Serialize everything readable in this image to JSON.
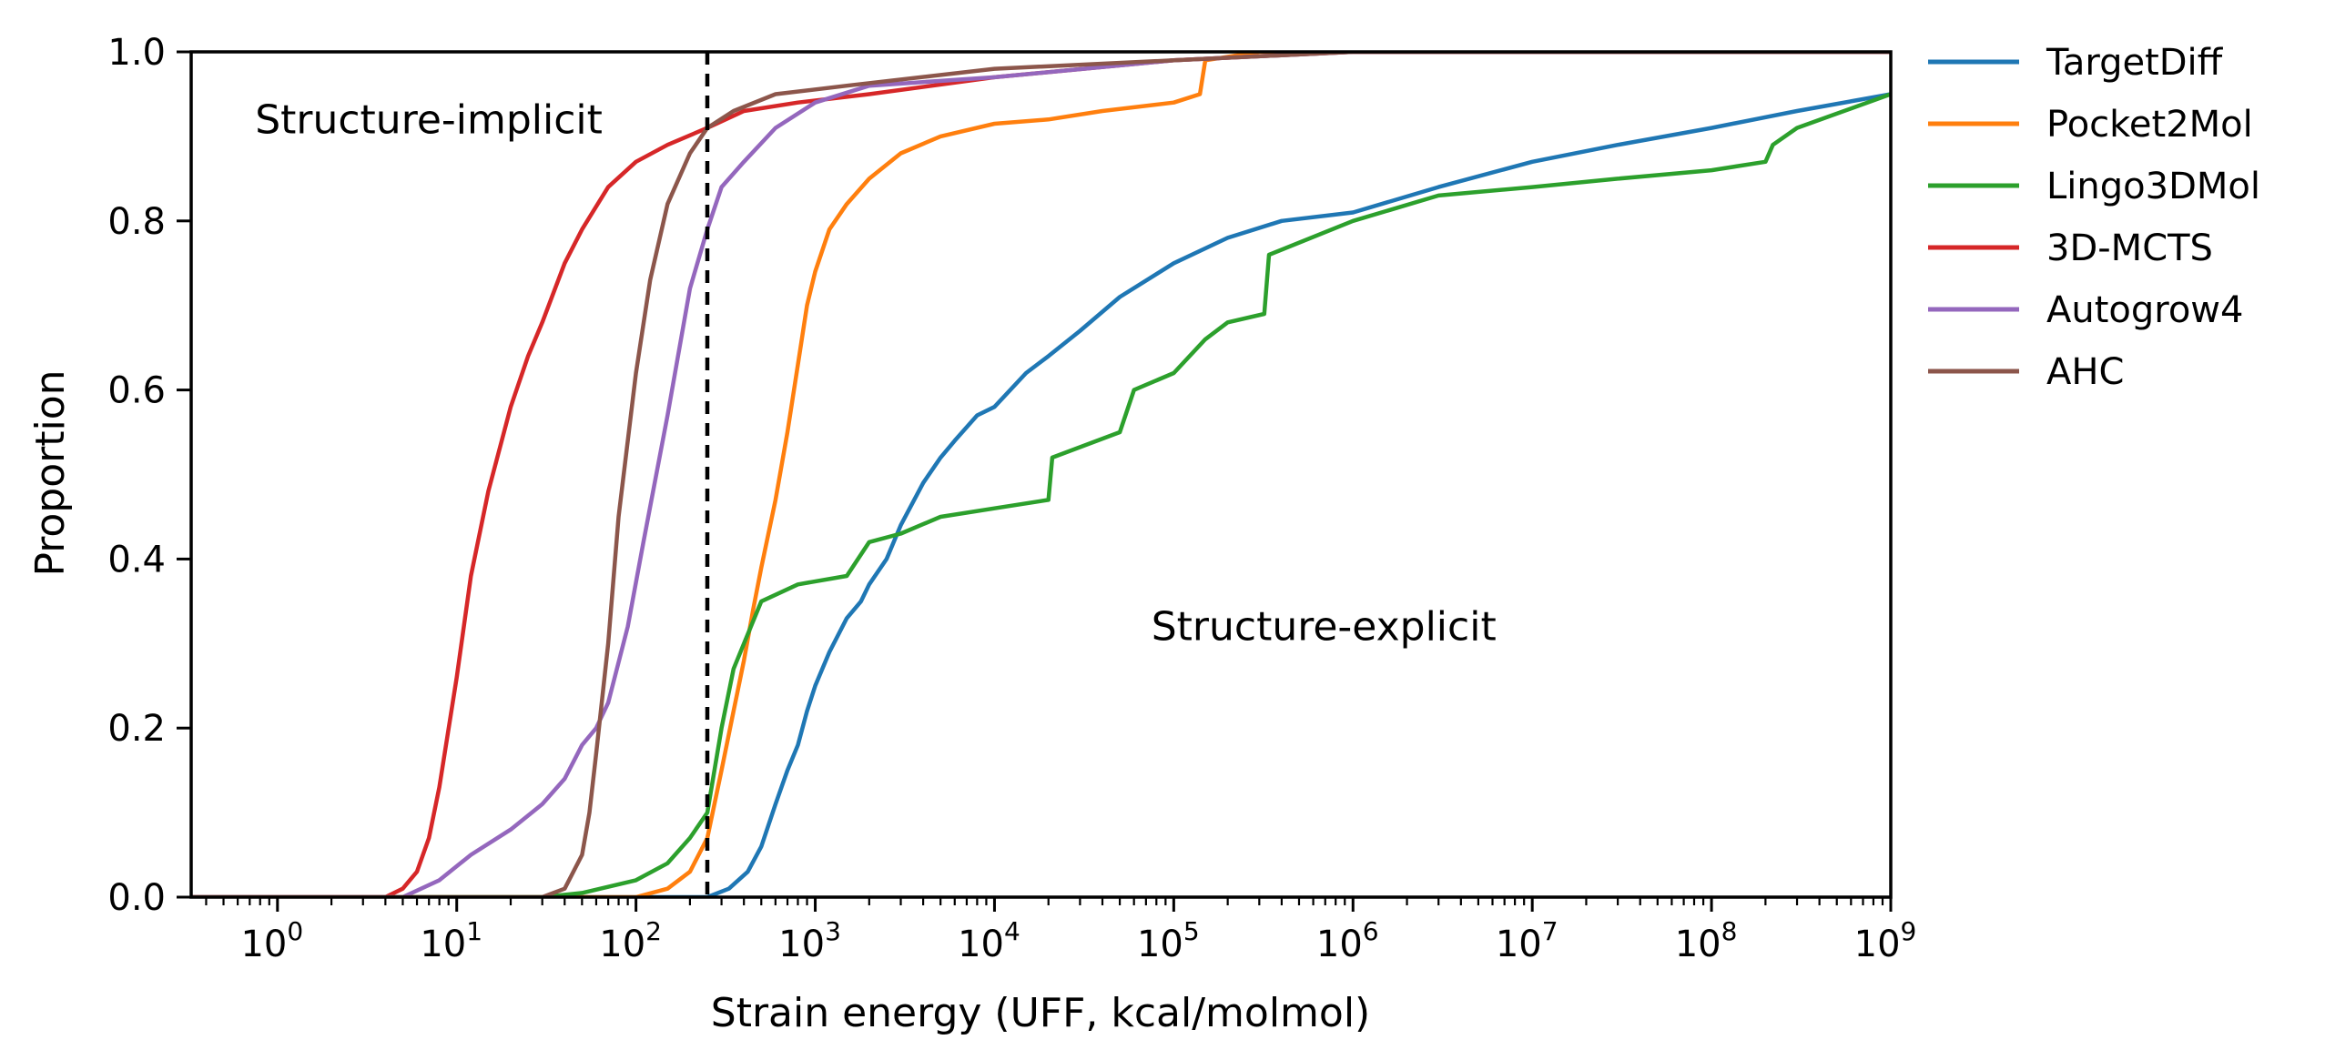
{
  "chart_data": {
    "type": "line",
    "xlabel": "Strain energy (UFF, kcal/molmol)",
    "ylabel": "Proportion",
    "x_scale": "log",
    "xlim": [
      0.33,
      1000000000
    ],
    "ylim": [
      0,
      1
    ],
    "x_ticks": [
      {
        "value": 1,
        "base": "10",
        "exp": "0"
      },
      {
        "value": 10,
        "base": "10",
        "exp": "1"
      },
      {
        "value": 100,
        "base": "10",
        "exp": "2"
      },
      {
        "value": 1000,
        "base": "10",
        "exp": "3"
      },
      {
        "value": 10000,
        "base": "10",
        "exp": "4"
      },
      {
        "value": 100000,
        "base": "10",
        "exp": "5"
      },
      {
        "value": 1000000,
        "base": "10",
        "exp": "6"
      },
      {
        "value": 10000000,
        "base": "10",
        "exp": "7"
      },
      {
        "value": 100000000,
        "base": "10",
        "exp": "8"
      },
      {
        "value": 1000000000,
        "base": "10",
        "exp": "9"
      }
    ],
    "y_ticks": [
      {
        "value": 0,
        "label": "0.0"
      },
      {
        "value": 0.2,
        "label": "0.2"
      },
      {
        "value": 0.4,
        "label": "0.4"
      },
      {
        "value": 0.6,
        "label": "0.6"
      },
      {
        "value": 0.8,
        "label": "0.8"
      },
      {
        "value": 1,
        "label": "1.0"
      }
    ],
    "grid": false,
    "legend_position": "outside-right-top",
    "threshold_line": {
      "x": 250,
      "style": "dashed",
      "color": "#000000"
    },
    "annotations": [
      {
        "text": "Structure-implicit",
        "x": 0.75,
        "y": 0.92
      },
      {
        "text": "Structure-explicit",
        "x": 75000,
        "y": 0.32
      }
    ],
    "series": [
      {
        "name": "TargetDiff",
        "color": "#1f77b4",
        "points": [
          [
            0.33,
            0
          ],
          [
            150,
            0
          ],
          [
            250,
            0
          ],
          [
            330,
            0.01
          ],
          [
            420,
            0.03
          ],
          [
            500,
            0.06
          ],
          [
            600,
            0.11
          ],
          [
            700,
            0.15
          ],
          [
            800,
            0.18
          ],
          [
            900,
            0.22
          ],
          [
            1000,
            0.25
          ],
          [
            1200,
            0.29
          ],
          [
            1500,
            0.33
          ],
          [
            1800,
            0.35
          ],
          [
            2000,
            0.37
          ],
          [
            2500,
            0.4
          ],
          [
            3000,
            0.44
          ],
          [
            4000,
            0.49
          ],
          [
            5000,
            0.52
          ],
          [
            6000,
            0.54
          ],
          [
            8000,
            0.57
          ],
          [
            10000,
            0.58
          ],
          [
            15000,
            0.62
          ],
          [
            20000,
            0.64
          ],
          [
            30000,
            0.67
          ],
          [
            50000,
            0.71
          ],
          [
            100000,
            0.75
          ],
          [
            200000,
            0.78
          ],
          [
            400000,
            0.8
          ],
          [
            1000000,
            0.81
          ],
          [
            3000000,
            0.84
          ],
          [
            10000000,
            0.87
          ],
          [
            30000000,
            0.89
          ],
          [
            100000000,
            0.91
          ],
          [
            300000000,
            0.93
          ],
          [
            1000000000,
            0.95
          ]
        ]
      },
      {
        "name": "Pocket2Mol",
        "color": "#ff7f0e",
        "points": [
          [
            0.33,
            0
          ],
          [
            30,
            0
          ],
          [
            100,
            0
          ],
          [
            150,
            0.01
          ],
          [
            200,
            0.03
          ],
          [
            250,
            0.07
          ],
          [
            300,
            0.15
          ],
          [
            350,
            0.22
          ],
          [
            400,
            0.28
          ],
          [
            450,
            0.34
          ],
          [
            500,
            0.39
          ],
          [
            600,
            0.47
          ],
          [
            700,
            0.55
          ],
          [
            800,
            0.63
          ],
          [
            900,
            0.7
          ],
          [
            1000,
            0.74
          ],
          [
            1200,
            0.79
          ],
          [
            1500,
            0.82
          ],
          [
            2000,
            0.85
          ],
          [
            3000,
            0.88
          ],
          [
            5000,
            0.9
          ],
          [
            10000,
            0.915
          ],
          [
            20000,
            0.92
          ],
          [
            40000,
            0.93
          ],
          [
            100000,
            0.94
          ],
          [
            140000,
            0.95
          ],
          [
            150000,
            0.99
          ],
          [
            300000,
            1.0
          ],
          [
            1000000000,
            1.0
          ]
        ]
      },
      {
        "name": "Lingo3DMol",
        "color": "#2ca02c",
        "points": [
          [
            0.33,
            0
          ],
          [
            30,
            0
          ],
          [
            50,
            0.005
          ],
          [
            100,
            0.02
          ],
          [
            150,
            0.04
          ],
          [
            200,
            0.07
          ],
          [
            250,
            0.1
          ],
          [
            300,
            0.2
          ],
          [
            350,
            0.27
          ],
          [
            400,
            0.3
          ],
          [
            500,
            0.35
          ],
          [
            800,
            0.37
          ],
          [
            1500,
            0.38
          ],
          [
            2000,
            0.42
          ],
          [
            3000,
            0.43
          ],
          [
            5000,
            0.45
          ],
          [
            10000,
            0.46
          ],
          [
            20000,
            0.47
          ],
          [
            21000,
            0.52
          ],
          [
            50000,
            0.55
          ],
          [
            60000,
            0.6
          ],
          [
            100000,
            0.62
          ],
          [
            150000,
            0.66
          ],
          [
            200000,
            0.68
          ],
          [
            320000,
            0.69
          ],
          [
            340000,
            0.76
          ],
          [
            1000000,
            0.8
          ],
          [
            3000000,
            0.83
          ],
          [
            10000000,
            0.84
          ],
          [
            30000000,
            0.85
          ],
          [
            100000000,
            0.86
          ],
          [
            200000000,
            0.87
          ],
          [
            220000000,
            0.89
          ],
          [
            300000000,
            0.91
          ],
          [
            1000000000,
            0.95
          ]
        ]
      },
      {
        "name": "3D-MCTS",
        "color": "#d62728",
        "points": [
          [
            0.33,
            0
          ],
          [
            4,
            0
          ],
          [
            5,
            0.01
          ],
          [
            6,
            0.03
          ],
          [
            7,
            0.07
          ],
          [
            8,
            0.13
          ],
          [
            10,
            0.26
          ],
          [
            12,
            0.38
          ],
          [
            15,
            0.48
          ],
          [
            20,
            0.58
          ],
          [
            25,
            0.64
          ],
          [
            30,
            0.68
          ],
          [
            40,
            0.75
          ],
          [
            50,
            0.79
          ],
          [
            70,
            0.84
          ],
          [
            100,
            0.87
          ],
          [
            150,
            0.89
          ],
          [
            250,
            0.91
          ],
          [
            400,
            0.93
          ],
          [
            800,
            0.94
          ],
          [
            2000,
            0.95
          ],
          [
            10000,
            0.97
          ],
          [
            100000,
            0.99
          ],
          [
            1000000,
            1.0
          ],
          [
            1000000000,
            1.0
          ]
        ]
      },
      {
        "name": "Autogrow4",
        "color": "#9467bd",
        "points": [
          [
            0.33,
            0
          ],
          [
            5,
            0
          ],
          [
            8,
            0.02
          ],
          [
            12,
            0.05
          ],
          [
            20,
            0.08
          ],
          [
            30,
            0.11
          ],
          [
            40,
            0.14
          ],
          [
            50,
            0.18
          ],
          [
            60,
            0.2
          ],
          [
            70,
            0.23
          ],
          [
            90,
            0.32
          ],
          [
            110,
            0.42
          ],
          [
            150,
            0.57
          ],
          [
            200,
            0.72
          ],
          [
            250,
            0.79
          ],
          [
            300,
            0.84
          ],
          [
            400,
            0.87
          ],
          [
            600,
            0.91
          ],
          [
            1000,
            0.94
          ],
          [
            2000,
            0.96
          ],
          [
            10000,
            0.97
          ],
          [
            100000,
            0.99
          ],
          [
            1000000,
            1.0
          ],
          [
            1000000000,
            1.0
          ]
        ]
      },
      {
        "name": "AHC",
        "color": "#8c564b",
        "points": [
          [
            0.33,
            0
          ],
          [
            30,
            0
          ],
          [
            40,
            0.01
          ],
          [
            50,
            0.05
          ],
          [
            55,
            0.1
          ],
          [
            60,
            0.17
          ],
          [
            70,
            0.3
          ],
          [
            80,
            0.45
          ],
          [
            100,
            0.62
          ],
          [
            120,
            0.73
          ],
          [
            150,
            0.82
          ],
          [
            200,
            0.88
          ],
          [
            250,
            0.91
          ],
          [
            350,
            0.93
          ],
          [
            600,
            0.95
          ],
          [
            1500,
            0.96
          ],
          [
            10000,
            0.98
          ],
          [
            100000,
            0.99
          ],
          [
            1000000,
            1.0
          ],
          [
            1000000000,
            1.0
          ]
        ]
      }
    ]
  }
}
